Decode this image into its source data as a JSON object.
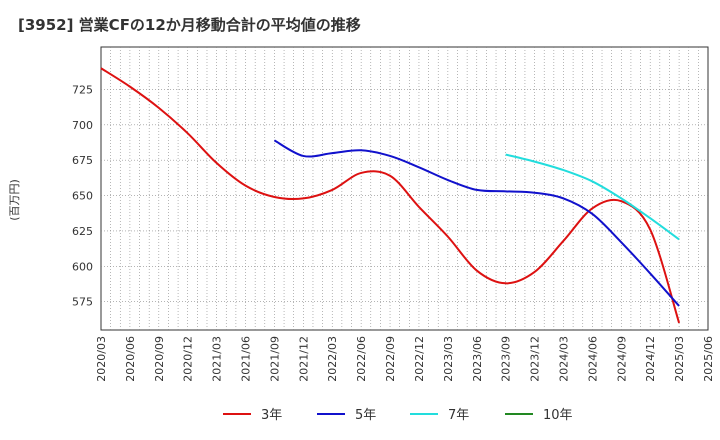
{
  "title": "[3952]  営業CFの12か月移動合計の平均値の推移",
  "chart_data": {
    "type": "line",
    "title": "[3952]  営業CFの12か月移動合計の平均値の推移",
    "ylabel": "(百万円)",
    "xlabel": "",
    "ylim": [
      555,
      755
    ],
    "yticks": [
      575,
      600,
      625,
      650,
      675,
      700,
      725
    ],
    "xlim": [
      "2020/03",
      "2025/06"
    ],
    "xticks": [
      "2020/03",
      "2020/06",
      "2020/09",
      "2020/12",
      "2021/03",
      "2021/06",
      "2021/09",
      "2021/12",
      "2022/03",
      "2022/06",
      "2022/09",
      "2022/12",
      "2023/03",
      "2023/06",
      "2023/09",
      "2023/12",
      "2024/03",
      "2024/06",
      "2024/09",
      "2024/12",
      "2025/03",
      "2025/06"
    ],
    "grid": true,
    "legend_position": "bottom",
    "series": [
      {
        "name": "3年",
        "color": "#dd1111",
        "points": [
          [
            "2020/03",
            740
          ],
          [
            "2020/06",
            727
          ],
          [
            "2020/09",
            712
          ],
          [
            "2020/12",
            694
          ],
          [
            "2021/03",
            673
          ],
          [
            "2021/06",
            657
          ],
          [
            "2021/09",
            649
          ],
          [
            "2021/12",
            648
          ],
          [
            "2022/03",
            654
          ],
          [
            "2022/06",
            666
          ],
          [
            "2022/09",
            664
          ],
          [
            "2022/12",
            642
          ],
          [
            "2023/03",
            621
          ],
          [
            "2023/06",
            597
          ],
          [
            "2023/09",
            588
          ],
          [
            "2023/12",
            596
          ],
          [
            "2024/03",
            618
          ],
          [
            "2024/06",
            641
          ],
          [
            "2024/09",
            646
          ],
          [
            "2024/12",
            626
          ],
          [
            "2025/03",
            560
          ]
        ]
      },
      {
        "name": "5年",
        "color": "#1111cc",
        "points": [
          [
            "2021/09",
            689
          ],
          [
            "2021/12",
            678
          ],
          [
            "2022/03",
            680
          ],
          [
            "2022/06",
            682
          ],
          [
            "2022/09",
            678
          ],
          [
            "2022/12",
            670
          ],
          [
            "2023/03",
            661
          ],
          [
            "2023/06",
            654
          ],
          [
            "2023/09",
            653
          ],
          [
            "2023/12",
            652
          ],
          [
            "2024/03",
            648
          ],
          [
            "2024/06",
            637
          ],
          [
            "2024/09",
            617
          ],
          [
            "2024/12",
            595
          ],
          [
            "2025/03",
            572
          ]
        ]
      },
      {
        "name": "7年",
        "color": "#22dddd",
        "points": [
          [
            "2023/09",
            679
          ],
          [
            "2023/12",
            674
          ],
          [
            "2024/03",
            668
          ],
          [
            "2024/06",
            660
          ],
          [
            "2024/09",
            648
          ],
          [
            "2024/12",
            634
          ],
          [
            "2025/03",
            619
          ]
        ]
      },
      {
        "name": "10年",
        "color": "#228822",
        "points": []
      }
    ]
  }
}
